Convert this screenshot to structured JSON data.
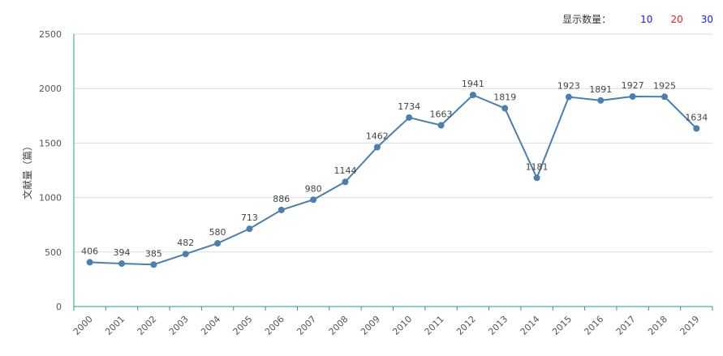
{
  "controls": {
    "label": "显示数量：",
    "options": [
      {
        "text": "10",
        "color": "#1a1aff"
      },
      {
        "text": "20",
        "color": "#ff1a1a"
      },
      {
        "text": "30",
        "color": "#1a1aff"
      }
    ]
  },
  "chart_data": {
    "type": "line",
    "title": "",
    "xlabel": "",
    "ylabel": "文献量（篇）",
    "ylim": [
      0,
      2500
    ],
    "yticks": [
      0,
      500,
      1000,
      1500,
      2000,
      2500
    ],
    "grid": true,
    "line_color": "#4a7fb0",
    "axis_color": "#2a9d8f",
    "x": [
      "2000",
      "2001",
      "2002",
      "2003",
      "2004",
      "2005",
      "2006",
      "2007",
      "2008",
      "2009",
      "2010",
      "2011",
      "2012",
      "2013",
      "2014",
      "2015",
      "2016",
      "2017",
      "2018",
      "2019"
    ],
    "values": [
      406,
      394,
      385,
      482,
      580,
      713,
      886,
      980,
      1144,
      1462,
      1734,
      1663,
      1941,
      1819,
      1181,
      1923,
      1891,
      1927,
      1925,
      1634
    ]
  }
}
